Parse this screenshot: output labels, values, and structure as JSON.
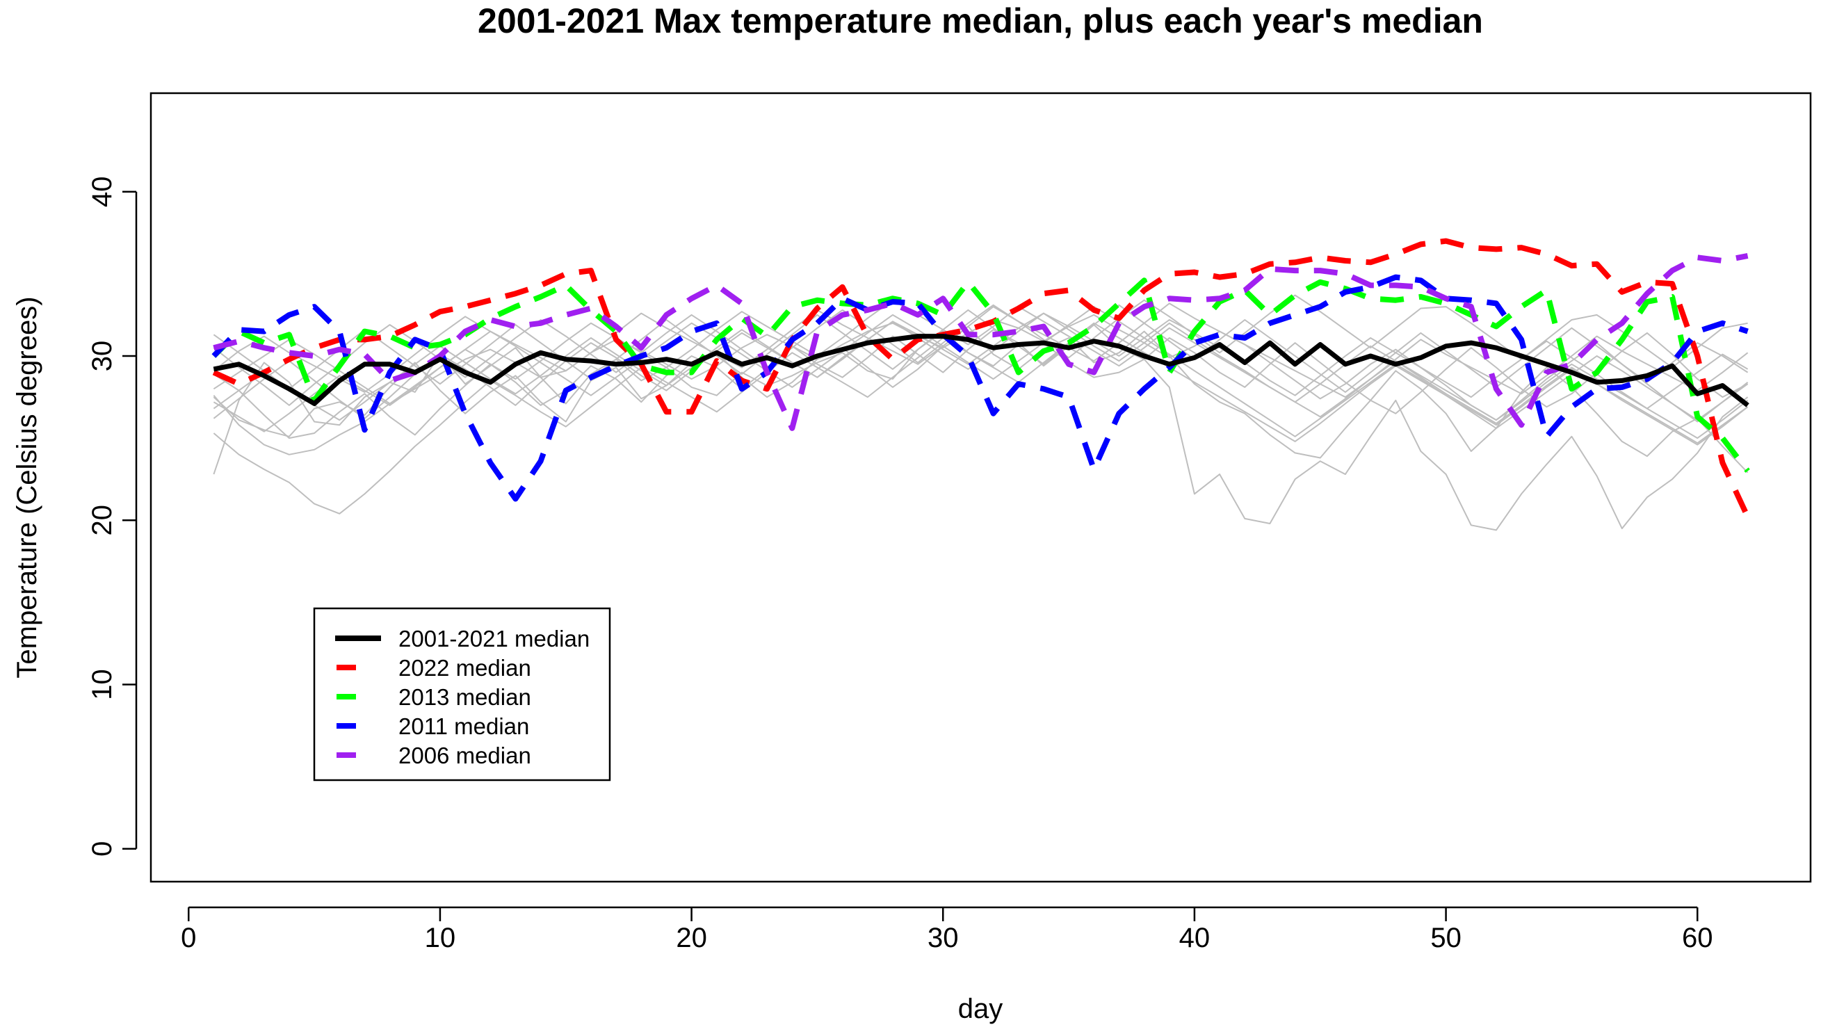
{
  "chart_data": {
    "type": "line",
    "title": "2001-2021 Max temperature median, plus each year's median",
    "xlabel": "day",
    "ylabel": "Temperature (Celsius degrees)",
    "xlim": [
      -1.5,
      64.5
    ],
    "ylim": [
      -2,
      46
    ],
    "xticks": [
      0,
      10,
      20,
      30,
      40,
      50,
      60
    ],
    "yticks": [
      0,
      10,
      20,
      30,
      40
    ],
    "legend_position": "bottom-left",
    "series": [
      {
        "name": "2001-2021 median",
        "color": "#000000",
        "dashed": false,
        "values": [
          29.2,
          29.5,
          28.8,
          28.0,
          27.1,
          28.5,
          29.5,
          29.5,
          29.0,
          29.8,
          29.0,
          28.4,
          29.5,
          30.2,
          29.8,
          29.7,
          29.5,
          29.6,
          29.8,
          29.5,
          30.2,
          29.5,
          29.9,
          29.4,
          30.0,
          30.4,
          30.8,
          31.0,
          31.2,
          31.2,
          31.0,
          30.5,
          30.7,
          30.8,
          30.5,
          30.9,
          30.6,
          30.0,
          29.5,
          29.9,
          30.7,
          29.6,
          30.8,
          29.5,
          30.7,
          29.5,
          30.0,
          29.5,
          29.9,
          30.6,
          30.8,
          30.5,
          30.0,
          29.5,
          29.0,
          28.4,
          28.5,
          28.8,
          29.4,
          27.7,
          28.2,
          27.0
        ]
      },
      {
        "name": "2022 median",
        "color": "#ff0000",
        "dashed": true,
        "values": [
          29.0,
          28.3,
          29.0,
          29.8,
          30.5,
          31.0,
          31.0,
          31.2,
          31.9,
          32.7,
          33.0,
          33.4,
          33.8,
          34.3,
          35.0,
          35.2,
          31.0,
          29.5,
          26.6,
          26.6,
          29.7,
          28.5,
          28.0,
          31.0,
          32.9,
          34.2,
          31.2,
          29.8,
          31.0,
          31.3,
          31.6,
          32.1,
          32.9,
          33.8,
          34.0,
          32.8,
          32.3,
          34.0,
          35.0,
          35.1,
          34.8,
          35.0,
          35.6,
          35.7,
          36.0,
          35.8,
          35.7,
          36.2,
          36.8,
          37.0,
          36.6,
          36.5,
          36.6,
          36.2,
          35.5,
          35.6,
          33.9,
          34.5,
          34.4,
          30.0,
          23.5,
          20.2
        ]
      },
      {
        "name": "2013 median",
        "color": "#00ff00",
        "dashed": true,
        "values": [
          30.0,
          31.5,
          30.8,
          31.3,
          27.3,
          29.4,
          31.5,
          31.2,
          30.5,
          30.7,
          31.3,
          32.3,
          33.0,
          33.6,
          34.3,
          32.8,
          31.5,
          29.4,
          29.0,
          29.0,
          31.0,
          32.3,
          31.2,
          33.0,
          33.4,
          33.2,
          33.1,
          33.5,
          33.2,
          32.5,
          34.5,
          32.6,
          29.0,
          30.3,
          30.8,
          31.8,
          33.2,
          34.6,
          29.0,
          31.5,
          33.3,
          34.0,
          32.5,
          33.7,
          34.5,
          34.1,
          33.5,
          33.4,
          33.6,
          33.2,
          32.5,
          31.8,
          33.0,
          34.0,
          28.0,
          29.0,
          31.0,
          33.3,
          33.6,
          26.3,
          25.0,
          23.0
        ]
      },
      {
        "name": "2011 median",
        "color": "#0000ff",
        "dashed": true,
        "values": [
          30.0,
          31.6,
          31.5,
          32.5,
          33.0,
          31.5,
          25.5,
          29.0,
          31.0,
          30.4,
          26.5,
          23.5,
          21.3,
          23.6,
          27.9,
          28.7,
          29.4,
          30.0,
          30.5,
          31.5,
          32.0,
          28.0,
          29.0,
          31.0,
          32.0,
          33.5,
          32.8,
          33.3,
          33.2,
          31.3,
          30.0,
          26.5,
          28.3,
          28.0,
          27.5,
          23.1,
          26.5,
          28.0,
          29.3,
          30.8,
          31.3,
          31.1,
          32.0,
          32.5,
          33.0,
          33.9,
          34.2,
          34.8,
          34.6,
          33.5,
          33.4,
          33.2,
          31.0,
          25.1,
          26.9,
          28.0,
          28.1,
          28.6,
          29.6,
          31.5,
          32.0,
          31.5
        ]
      },
      {
        "name": "2006 median",
        "color": "#a020f0",
        "dashed": true,
        "values": [
          30.5,
          30.9,
          30.5,
          30.2,
          30.0,
          30.4,
          30.1,
          28.5,
          29.0,
          30.0,
          31.5,
          32.2,
          31.8,
          32.0,
          32.5,
          32.9,
          31.8,
          30.5,
          32.5,
          33.5,
          34.3,
          33.2,
          29.0,
          25.6,
          31.5,
          32.5,
          32.8,
          33.2,
          32.5,
          33.5,
          31.3,
          31.3,
          31.5,
          31.8,
          29.5,
          29.0,
          32.0,
          33.0,
          33.5,
          33.4,
          33.5,
          34.0,
          35.3,
          35.2,
          35.2,
          35.0,
          34.3,
          34.3,
          34.2,
          33.5,
          33.0,
          28.0,
          25.8,
          29.0,
          29.5,
          31.0,
          32.0,
          33.8,
          35.2,
          36.0,
          35.8,
          36.1
        ]
      }
    ],
    "background_series_color": "#bebebe",
    "background_series": [
      [
        22.8,
        27.3,
        29.6,
        28.4,
        26.0,
        25.8,
        27.5,
        28.4,
        27.8,
        30.1,
        28.3,
        29.4,
        30.5,
        28.7,
        27.1,
        28.9,
        29.8,
        28.5,
        29.3,
        28.1,
        27.6,
        29.0,
        28.2,
        28.8,
        29.6,
        30.2,
        29.1,
        28.6,
        30.4,
        31.5,
        30.2,
        29.4,
        30.7,
        30.8,
        29.6,
        28.7,
        29.0,
        29.8,
        28.1,
        21.6,
        22.8,
        20.1,
        19.8,
        22.5,
        23.6,
        22.8,
        25.1,
        27.3,
        24.2,
        22.8,
        19.7,
        19.4,
        21.6,
        23.4,
        25.1,
        22.7,
        19.5,
        21.4,
        22.5,
        24.1,
        26.3,
        27.5
      ],
      [
        27.5,
        26.1,
        25.5,
        25.1,
        26.8,
        27.2,
        26.4,
        28.1,
        29.6,
        27.9,
        26.5,
        27.8,
        28.8,
        27.2,
        26.0,
        28.5,
        29.3,
        27.4,
        28.2,
        29.6,
        30.2,
        28.7,
        27.5,
        28.4,
        29.8,
        30.5,
        29.3,
        28.1,
        29.2,
        30.6,
        31.8,
        30.1,
        29.2,
        30.4,
        31.1,
        29.6,
        30.2,
        31.5,
        30.0,
        28.3,
        27.2,
        26.5,
        25.2,
        24.1,
        23.8,
        25.6,
        27.3,
        29.1,
        28.0,
        26.5,
        24.2,
        25.6,
        27.8,
        29.3,
        28.1,
        26.5,
        24.8,
        23.9,
        25.4,
        26.2,
        24.5,
        22.9
      ],
      [
        28.9,
        27.9,
        26.4,
        25.0,
        25.3,
        26.6,
        27.7,
        26.3,
        25.2,
        26.8,
        28.2,
        29.5,
        28.4,
        27.0,
        27.9,
        29.4,
        28.6,
        27.2,
        28.8,
        30.0,
        29.3,
        28.0,
        29.2,
        30.6,
        29.5,
        28.7,
        29.9,
        31.2,
        30.1,
        29.0,
        30.4,
        31.6,
        30.8,
        29.4,
        30.6,
        31.9,
        30.5,
        29.8,
        31.1,
        30.2,
        29.0,
        28.1,
        29.5,
        30.8,
        29.6,
        28.4,
        27.3,
        26.5,
        27.8,
        29.2,
        30.5,
        29.3,
        28.0,
        26.9,
        27.7,
        29.0,
        30.3,
        31.4,
        30.1,
        28.6,
        27.5,
        28.3
      ],
      [
        27.6,
        25.8,
        24.6,
        24.0,
        24.3,
        25.2,
        26.0,
        27.1,
        28.0,
        28.9,
        29.8,
        30.4,
        29.6,
        28.7,
        29.1,
        30.2,
        31.0,
        30.3,
        29.5,
        28.6,
        29.4,
        30.5,
        31.3,
        30.6,
        29.8,
        30.7,
        31.5,
        32.0,
        31.2,
        30.5,
        31.4,
        32.2,
        31.7,
        30.9,
        31.8,
        32.5,
        31.6,
        30.8,
        29.9,
        30.6,
        31.5,
        30.7,
        29.6,
        28.5,
        27.4,
        28.3,
        29.5,
        30.4,
        29.3,
        28.2,
        27.0,
        26.1,
        27.3,
        28.6,
        29.7,
        30.8,
        29.5,
        28.3,
        27.1,
        26.0,
        27.2,
        28.4
      ],
      [
        26.2,
        27.4,
        28.6,
        29.7,
        28.5,
        27.3,
        26.2,
        27.5,
        28.9,
        30.1,
        29.2,
        28.1,
        27.0,
        28.4,
        29.7,
        30.8,
        29.9,
        28.8,
        27.9,
        29.1,
        30.3,
        31.4,
        30.5,
        29.6,
        28.7,
        29.9,
        31.0,
        32.1,
        31.3,
        30.4,
        29.5,
        30.6,
        31.7,
        32.6,
        31.8,
        30.9,
        30.0,
        31.1,
        32.2,
        31.4,
        30.5,
        29.6,
        28.5,
        27.6,
        28.8,
        30.0,
        31.1,
        30.2,
        29.3,
        28.4,
        27.5,
        28.7,
        29.8,
        30.9,
        29.9,
        28.9,
        27.8,
        26.8,
        27.9,
        29.0,
        30.1,
        29.2
      ],
      [
        25.3,
        24.0,
        23.1,
        22.3,
        21.0,
        20.4,
        21.6,
        23.0,
        24.5,
        25.8,
        27.2,
        28.5,
        27.6,
        26.6,
        25.7,
        26.9,
        28.1,
        29.3,
        28.4,
        27.5,
        26.6,
        27.8,
        29.0,
        30.2,
        29.3,
        28.4,
        27.5,
        28.7,
        29.9,
        31.1,
        30.2,
        29.3,
        28.4,
        29.6,
        30.8,
        32.0,
        31.1,
        30.2,
        29.3,
        28.4,
        27.5,
        26.6,
        25.7,
        24.8,
        25.9,
        27.1,
        28.3,
        29.4,
        28.5,
        27.6,
        26.7,
        25.8,
        26.9,
        28.1,
        29.2,
        28.3,
        27.4,
        26.5,
        25.6,
        24.7,
        25.8,
        26.9
      ],
      [
        30.5,
        29.3,
        28.2,
        27.0,
        28.3,
        29.5,
        30.8,
        31.9,
        30.9,
        29.8,
        28.7,
        29.9,
        31.1,
        32.2,
        31.2,
        30.1,
        29.0,
        30.2,
        31.4,
        32.5,
        31.5,
        30.4,
        29.3,
        30.5,
        31.7,
        32.8,
        31.8,
        30.7,
        29.6,
        30.8,
        32.0,
        33.1,
        32.1,
        31.0,
        29.9,
        31.1,
        32.3,
        33.4,
        32.4,
        31.3,
        30.2,
        31.4,
        32.6,
        33.7,
        32.7,
        31.6,
        30.5,
        31.7,
        32.9,
        33.0,
        32.0,
        30.9,
        29.8,
        31.0,
        32.2,
        32.5,
        31.5,
        30.4,
        29.3,
        30.5,
        31.7,
        32.0
      ],
      [
        28.0,
        29.0,
        30.0,
        31.0,
        30.1,
        29.1,
        28.1,
        27.1,
        28.2,
        29.3,
        30.4,
        31.5,
        30.6,
        29.6,
        28.6,
        27.6,
        28.7,
        29.8,
        30.9,
        32.0,
        31.1,
        30.1,
        29.1,
        28.1,
        29.2,
        30.3,
        31.4,
        32.5,
        31.6,
        30.6,
        29.6,
        28.6,
        29.7,
        30.8,
        31.9,
        33.0,
        32.1,
        31.1,
        30.1,
        29.1,
        28.1,
        27.1,
        26.1,
        25.1,
        26.2,
        27.3,
        28.4,
        29.5,
        28.6,
        27.6,
        26.6,
        25.6,
        26.7,
        27.8,
        28.9,
        30.0,
        29.1,
        28.1,
        27.1,
        26.1,
        27.2,
        28.3
      ],
      [
        29.1,
        30.3,
        31.2,
        30.2,
        29.4,
        28.6,
        27.8,
        28.9,
        30.1,
        31.3,
        32.4,
        31.5,
        30.7,
        29.9,
        29.1,
        30.2,
        31.4,
        32.6,
        31.7,
        30.9,
        30.1,
        29.3,
        30.4,
        31.6,
        32.8,
        31.9,
        31.1,
        30.3,
        29.5,
        30.6,
        31.8,
        33.0,
        32.1,
        31.3,
        30.5,
        29.7,
        30.8,
        32.0,
        33.2,
        32.3,
        31.5,
        30.7,
        29.9,
        29.1,
        28.3,
        27.5,
        28.6,
        29.8,
        31.0,
        30.1,
        29.3,
        28.5,
        27.7,
        28.8,
        30.0,
        31.2,
        30.3,
        29.5,
        28.7,
        27.9,
        29.0,
        30.2
      ],
      [
        26.8,
        27.9,
        29.0,
        28.0,
        27.0,
        26.1,
        27.2,
        28.4,
        29.5,
        30.6,
        29.6,
        28.6,
        27.7,
        28.8,
        30.0,
        31.1,
        30.1,
        29.1,
        28.2,
        29.3,
        30.5,
        31.6,
        30.6,
        29.6,
        28.7,
        29.8,
        31.0,
        32.1,
        31.1,
        30.1,
        29.2,
        30.3,
        31.5,
        32.6,
        31.6,
        30.6,
        29.7,
        30.8,
        32.0,
        31.0,
        30.0,
        29.1,
        28.1,
        27.2,
        26.3,
        27.4,
        28.6,
        29.7,
        28.7,
        27.7,
        26.8,
        25.9,
        27.0,
        28.2,
        29.3,
        28.3,
        27.3,
        26.4,
        25.5,
        24.6,
        25.7,
        26.9
      ],
      [
        31.3,
        30.2,
        29.1,
        28.0,
        29.2,
        30.4,
        31.6,
        30.5,
        29.4,
        28.3,
        29.5,
        30.7,
        31.9,
        30.8,
        29.7,
        28.6,
        29.8,
        31.0,
        32.2,
        31.1,
        30.0,
        28.9,
        30.1,
        31.3,
        32.5,
        31.4,
        30.3,
        29.2,
        30.4,
        31.6,
        32.8,
        31.7,
        30.6,
        29.5,
        30.7,
        31.9,
        33.1,
        32.0,
        30.9,
        29.8,
        31.0,
        32.2,
        31.1,
        30.0,
        28.9,
        27.8,
        29.0,
        30.2,
        31.4,
        30.3,
        29.2,
        28.1,
        29.3,
        30.5,
        31.7,
        30.6,
        29.5,
        28.4,
        29.6,
        30.8,
        30.0,
        29.0
      ],
      [
        27.2,
        26.3,
        25.4,
        26.5,
        27.7,
        28.8,
        27.9,
        27.0,
        28.1,
        29.3,
        30.4,
        29.5,
        28.6,
        29.7,
        30.9,
        32.0,
        31.1,
        30.2,
        29.3,
        30.4,
        31.6,
        32.7,
        31.8,
        30.9,
        30.0,
        31.1,
        32.3,
        33.4,
        32.5,
        31.6,
        30.7,
        31.8,
        33.0,
        32.1,
        31.2,
        30.3,
        29.4,
        30.5,
        31.7,
        30.8,
        29.9,
        29.0,
        28.1,
        27.2,
        28.3,
        29.5,
        30.6,
        29.7,
        28.8,
        27.9,
        27.0,
        26.1,
        27.2,
        28.4,
        29.5,
        28.6,
        27.7,
        26.8,
        25.9,
        25.0,
        26.1,
        27.3
      ]
    ],
    "legend": [
      {
        "label": "2001-2021 median",
        "color": "#000000",
        "dashed": false
      },
      {
        "label": "2022 median",
        "color": "#ff0000",
        "dashed": true
      },
      {
        "label": "2013 median",
        "color": "#00ff00",
        "dashed": true
      },
      {
        "label": "2011 median",
        "color": "#0000ff",
        "dashed": true
      },
      {
        "label": "2006 median",
        "color": "#a020f0",
        "dashed": true
      }
    ]
  }
}
